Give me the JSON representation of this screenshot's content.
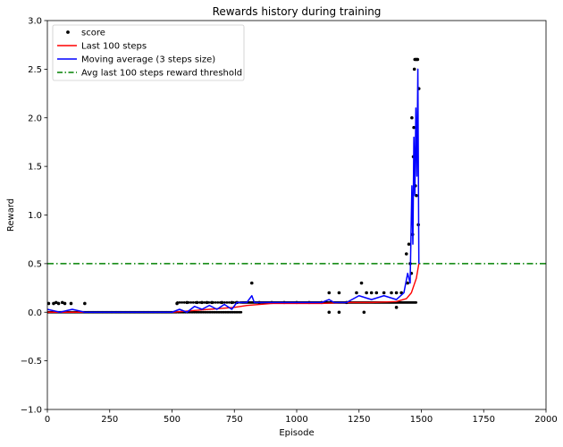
{
  "chart_data": {
    "type": "line",
    "title": "Rewards history during training",
    "xlabel": "Episode",
    "ylabel": "Reward",
    "xlim": [
      0,
      2000
    ],
    "ylim": [
      -1.0,
      3.0
    ],
    "xticks": [
      0,
      250,
      500,
      750,
      1000,
      1250,
      1500,
      1750,
      2000
    ],
    "yticks": [
      -1.0,
      -0.5,
      0.0,
      0.5,
      1.0,
      1.5,
      2.0,
      2.5,
      3.0
    ],
    "ytick_labels": [
      "−1.0",
      "−0.5",
      "0.0",
      "0.5",
      "1.0",
      "1.5",
      "2.0",
      "2.5",
      "3.0"
    ],
    "grid": false,
    "legend_position": "top-left",
    "legend": [
      {
        "label": "score",
        "style": "dot",
        "color": "#000000"
      },
      {
        "label": "Last 100 steps",
        "style": "line",
        "color": "#ff0000"
      },
      {
        "label": "Moving average (3 steps size)",
        "style": "line",
        "color": "#0000ff"
      },
      {
        "label": "Avg last 100 steps reward threshold",
        "style": "dashdot",
        "color": "#008000"
      }
    ],
    "threshold": 0.5,
    "series": [
      {
        "name": "score",
        "style": "scatter",
        "color": "#000000",
        "points": [
          [
            5,
            0.09
          ],
          [
            25,
            0.09
          ],
          [
            35,
            0.1
          ],
          [
            45,
            0.09
          ],
          [
            60,
            0.1
          ],
          [
            70,
            0.09
          ],
          [
            95,
            0.09
          ],
          [
            150,
            0.09
          ],
          [
            520,
            0.09
          ],
          [
            560,
            0.1
          ],
          [
            600,
            0.1
          ],
          [
            620,
            0.1
          ],
          [
            640,
            0.1
          ],
          [
            660,
            0.1
          ],
          [
            700,
            0.1
          ],
          [
            740,
            0.1
          ],
          [
            760,
            0.1
          ],
          [
            820,
            0.3
          ],
          [
            850,
            0.1
          ],
          [
            900,
            0.1
          ],
          [
            950,
            0.1
          ],
          [
            1000,
            0.1
          ],
          [
            1050,
            0.1
          ],
          [
            1100,
            0.1
          ],
          [
            1130,
            0.2
          ],
          [
            1170,
            0.2
          ],
          [
            1200,
            0.1
          ],
          [
            1240,
            0.2
          ],
          [
            1260,
            0.3
          ],
          [
            1280,
            0.2
          ],
          [
            1300,
            0.2
          ],
          [
            1320,
            0.2
          ],
          [
            1350,
            0.2
          ],
          [
            1380,
            0.2
          ],
          [
            1400,
            0.2
          ],
          [
            1420,
            0.2
          ],
          [
            1130,
            0.0
          ],
          [
            1170,
            0.0
          ],
          [
            1270,
            0.0
          ],
          [
            1400,
            0.05
          ],
          [
            1440,
            0.6
          ],
          [
            1445,
            0.3
          ],
          [
            1450,
            0.7
          ],
          [
            1455,
            0.5
          ],
          [
            1460,
            0.4
          ],
          [
            1462,
            2.0
          ],
          [
            1465,
            0.8
          ],
          [
            1468,
            1.6
          ],
          [
            1470,
            1.9
          ],
          [
            1472,
            2.5
          ],
          [
            1474,
            2.6
          ],
          [
            1476,
            1.3
          ],
          [
            1478,
            2.6
          ],
          [
            1480,
            1.2
          ],
          [
            1482,
            2.6
          ],
          [
            1485,
            2.6
          ],
          [
            1488,
            0.9
          ],
          [
            1490,
            2.3
          ]
        ]
      },
      {
        "name": "Last 100 steps",
        "style": "line",
        "color": "#ff0000",
        "x": [
          0,
          100,
          200,
          300,
          400,
          500,
          550,
          600,
          650,
          700,
          750,
          800,
          850,
          900,
          1000,
          1100,
          1200,
          1300,
          1400,
          1440,
          1460,
          1480,
          1490
        ],
        "y": [
          0.0,
          0.0,
          0.0,
          0.0,
          0.0,
          0.0,
          0.01,
          0.02,
          0.03,
          0.04,
          0.05,
          0.07,
          0.08,
          0.09,
          0.09,
          0.09,
          0.1,
          0.1,
          0.11,
          0.14,
          0.2,
          0.35,
          0.5
        ]
      },
      {
        "name": "Moving average (3 steps size)",
        "style": "line",
        "color": "#0000ff",
        "x": [
          0,
          50,
          100,
          150,
          200,
          300,
          400,
          500,
          530,
          560,
          590,
          620,
          650,
          680,
          710,
          740,
          760,
          800,
          820,
          830,
          900,
          1000,
          1100,
          1130,
          1150,
          1200,
          1250,
          1300,
          1350,
          1400,
          1430,
          1445,
          1455,
          1462,
          1466,
          1470,
          1474,
          1478,
          1482,
          1486,
          1490
        ],
        "y": [
          0.03,
          0.0,
          0.03,
          0.0,
          0.0,
          0.0,
          0.0,
          0.0,
          0.03,
          0.0,
          0.06,
          0.03,
          0.07,
          0.03,
          0.08,
          0.03,
          0.1,
          0.1,
          0.17,
          0.1,
          0.1,
          0.1,
          0.1,
          0.13,
          0.1,
          0.1,
          0.17,
          0.13,
          0.17,
          0.13,
          0.2,
          0.4,
          0.3,
          1.3,
          0.7,
          1.8,
          1.2,
          2.1,
          1.4,
          2.5,
          0.5
        ]
      }
    ]
  }
}
